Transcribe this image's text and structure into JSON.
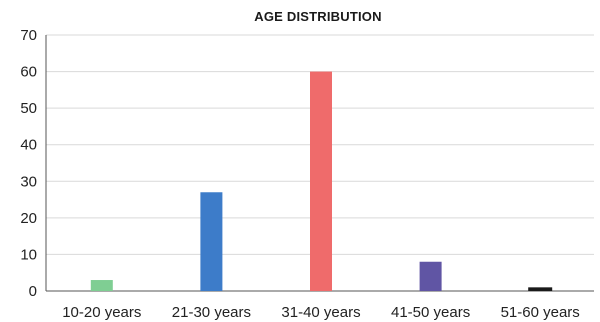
{
  "chart_data": {
    "type": "bar",
    "title": "AGE DISTRIBUTION",
    "xlabel": "",
    "ylabel": "",
    "categories": [
      "10-20 years",
      "21-30 years",
      "31-40 years",
      "41-50 years",
      "51-60 years"
    ],
    "values": [
      3,
      27,
      60,
      8,
      1
    ],
    "colors": [
      "#7fce93",
      "#3d7cc9",
      "#ef6b6b",
      "#6055a4",
      "#1a1a1a"
    ],
    "ylim": [
      0,
      70
    ],
    "yticks": [
      0,
      10,
      20,
      30,
      40,
      50,
      60,
      70
    ],
    "grid": true,
    "legend": "none"
  }
}
